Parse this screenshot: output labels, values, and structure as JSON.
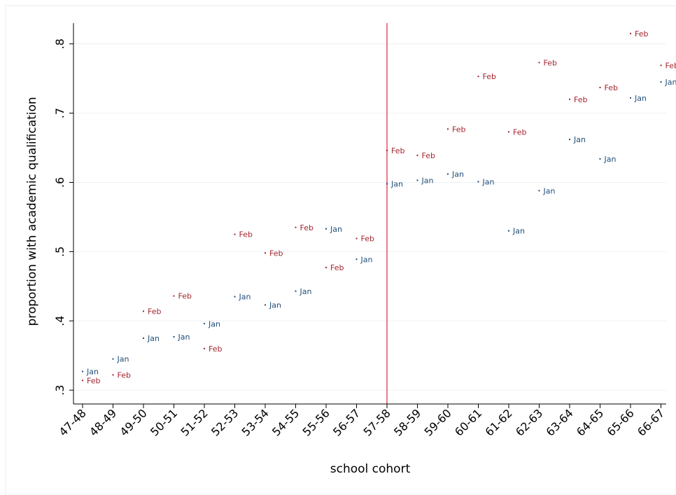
{
  "chart_data": {
    "type": "scatter",
    "xlabel": "school cohort",
    "ylabel": "proportion with academic qualification",
    "categories": [
      "47-48",
      "48-49",
      "49-50",
      "50-51",
      "51-52",
      "52-53",
      "53-54",
      "54-55",
      "55-56",
      "56-57",
      "57-58",
      "58-59",
      "59-60",
      "60-61",
      "61-62",
      "62-63",
      "63-64",
      "64-65",
      "65-66",
      "66-67"
    ],
    "y_ticks": [
      ".3",
      ".4",
      ".5",
      ".6",
      ".7",
      ".8"
    ],
    "y_tick_values": [
      0.3,
      0.4,
      0.5,
      0.6,
      0.7,
      0.8
    ],
    "ylim": [
      0.28,
      0.83
    ],
    "grid": "horizontal",
    "reference_line": {
      "x": "57-58",
      "color": "#e0243c"
    },
    "series": [
      {
        "name": "Jan",
        "color": "#1f4e79",
        "values": [
          0.327,
          0.345,
          0.375,
          0.377,
          0.396,
          0.435,
          0.423,
          0.443,
          0.533,
          0.489,
          0.598,
          0.603,
          0.612,
          0.601,
          0.53,
          0.588,
          0.662,
          0.634,
          0.722,
          0.745
        ]
      },
      {
        "name": "Feb",
        "color": "#a3262e",
        "values": [
          0.314,
          0.322,
          0.414,
          0.436,
          0.36,
          0.525,
          0.498,
          0.535,
          0.477,
          0.519,
          0.646,
          0.639,
          0.677,
          0.753,
          0.673,
          0.773,
          0.72,
          0.737,
          0.815,
          0.769
        ]
      }
    ]
  }
}
